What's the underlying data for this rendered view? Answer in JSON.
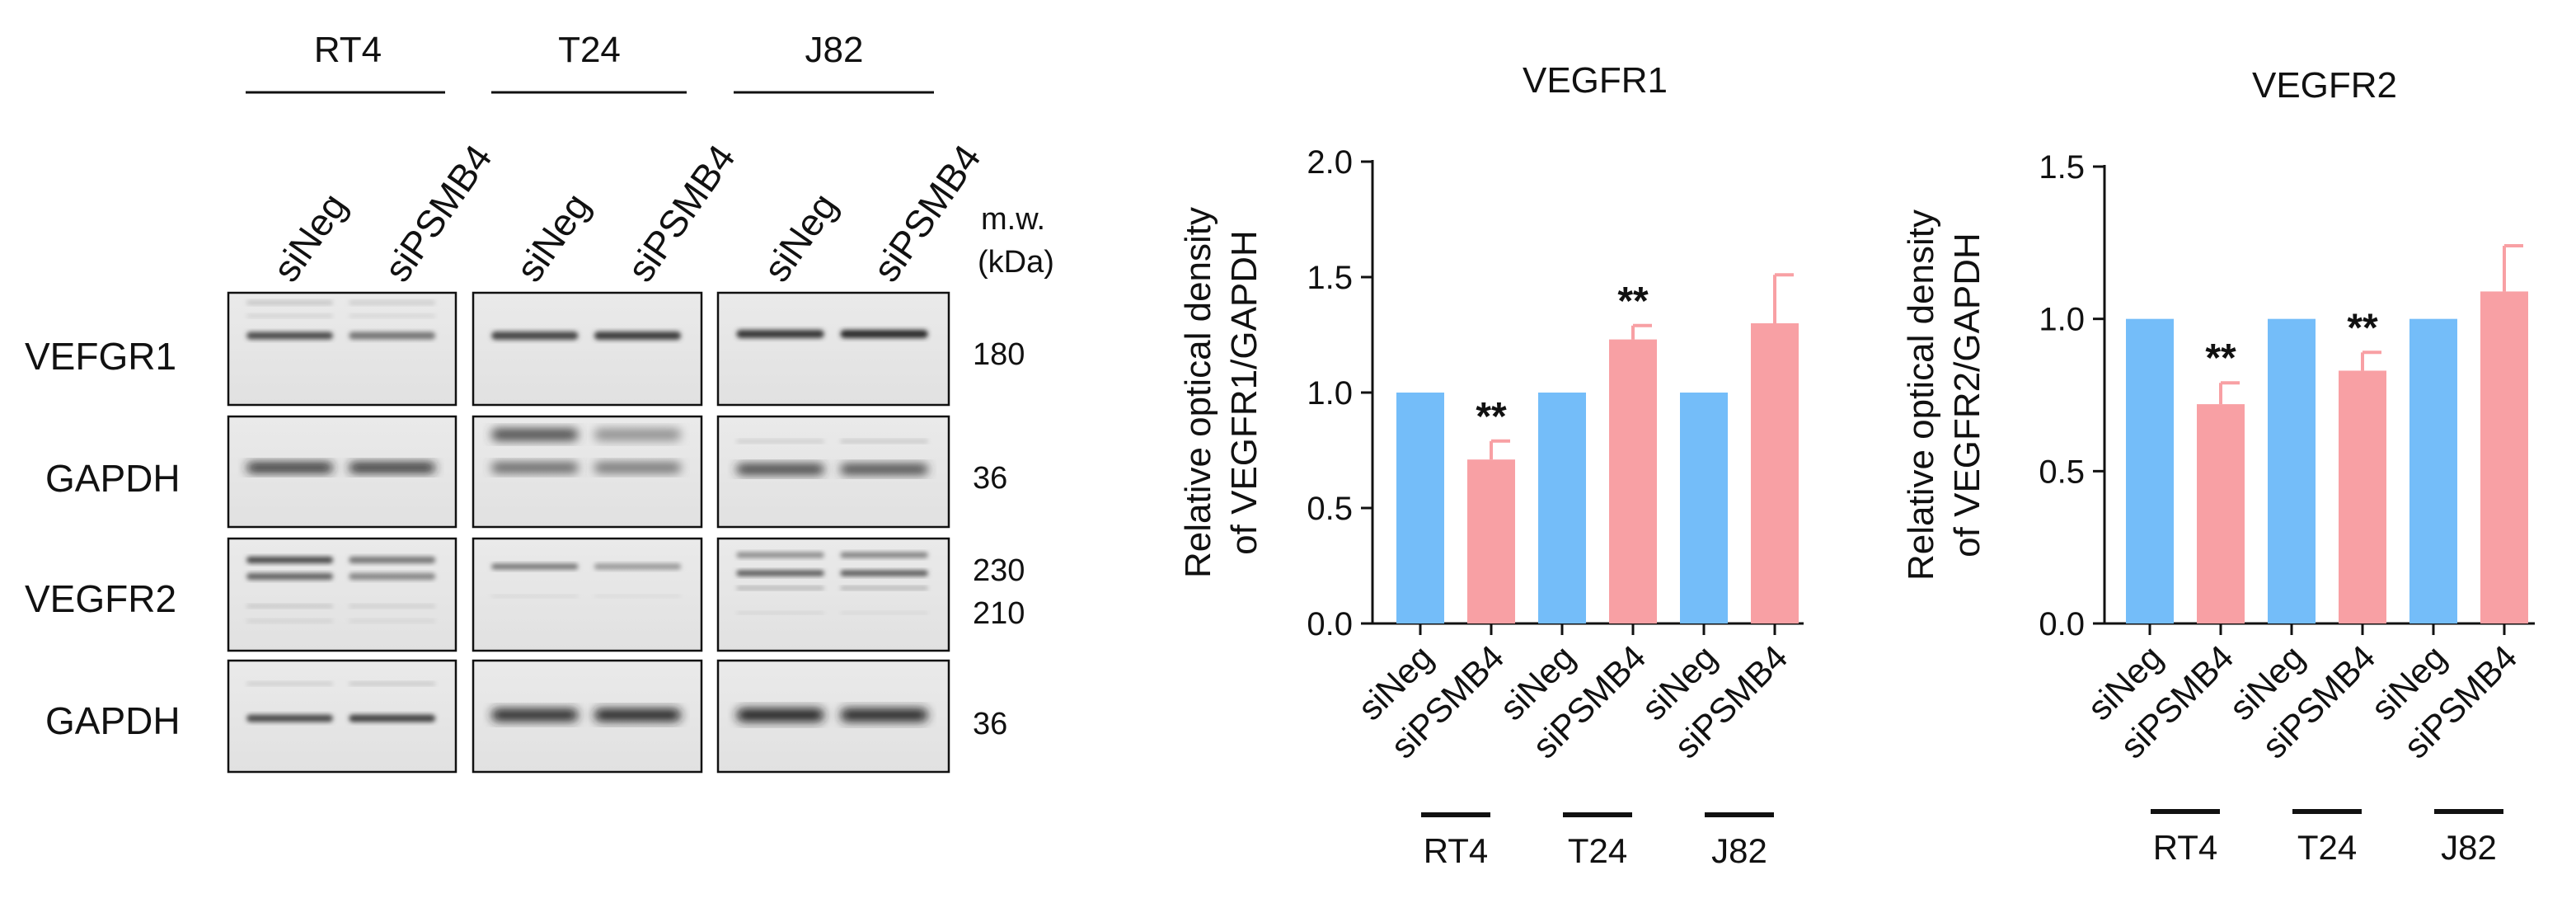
{
  "blot": {
    "cell_lines": [
      "RT4",
      "T24",
      "J82"
    ],
    "lane_labels": [
      "siNeg",
      "siPSMB4",
      "siNeg",
      "siPSMB4",
      "siNeg",
      "siPSMB4"
    ],
    "mw_header": [
      "m.w.",
      "(kDa)"
    ],
    "rows": [
      {
        "label": "VEFGR1",
        "mw": [
          "180"
        ]
      },
      {
        "label": "GAPDH",
        "mw": [
          "36"
        ]
      },
      {
        "label": "VEGFR2",
        "mw": [
          "230",
          "210"
        ]
      },
      {
        "label": "GAPDH",
        "mw": [
          "36"
        ]
      }
    ]
  },
  "colors": {
    "siNeg": "#74bdf9",
    "siPSMB4": "#f8a0a4",
    "axis": "#111111"
  },
  "chart_data": [
    {
      "type": "bar",
      "title": "VEGFR1",
      "ylabel": [
        "Relative optical density",
        "of VEGFR1/GAPDH"
      ],
      "categories": [
        "siNeg",
        "siPSMB4",
        "siNeg",
        "siPSMB4",
        "siNeg",
        "siPSMB4"
      ],
      "values": [
        1.0,
        0.71,
        1.0,
        1.23,
        1.0,
        1.3
      ],
      "errors": [
        0,
        0.08,
        0,
        0.06,
        0,
        0.21
      ],
      "significance": [
        "",
        "**",
        "",
        "**",
        "",
        ""
      ],
      "groups": [
        "RT4",
        "T24",
        "J82"
      ],
      "ylim": [
        0,
        2.0
      ],
      "yticks": [
        "0.0",
        "0.5",
        "1.0",
        "1.5",
        "2.0"
      ]
    },
    {
      "type": "bar",
      "title": "VEGFR2",
      "ylabel": [
        "Relative optical density",
        "of VEGFR2/GAPDH"
      ],
      "categories": [
        "siNeg",
        "siPSMB4",
        "siNeg",
        "siPSMB4",
        "siNeg",
        "siPSMB4"
      ],
      "values": [
        1.0,
        0.72,
        1.0,
        0.83,
        1.0,
        1.09
      ],
      "errors": [
        0,
        0.07,
        0,
        0.06,
        0,
        0.15
      ],
      "significance": [
        "",
        "**",
        "",
        "**",
        "",
        ""
      ],
      "groups": [
        "RT4",
        "T24",
        "J82"
      ],
      "ylim": [
        0,
        1.5
      ],
      "yticks": [
        "0.0",
        "0.5",
        "1.0",
        "1.5"
      ]
    }
  ]
}
